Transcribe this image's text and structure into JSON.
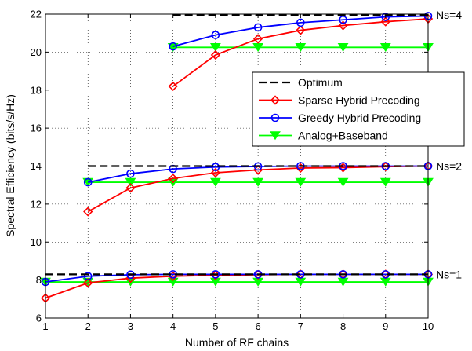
{
  "chart_data": {
    "type": "line",
    "xlabel": "Number of RF chains",
    "ylabel": "Spectral Efficiency (bits/s/Hz)",
    "xlim": [
      1,
      10
    ],
    "ylim": [
      6,
      22
    ],
    "xticks": [
      1,
      2,
      3,
      4,
      5,
      6,
      7,
      8,
      9,
      10
    ],
    "yticks": [
      6,
      8,
      10,
      12,
      14,
      16,
      18,
      20,
      22
    ],
    "grid": true,
    "legend_position": "right-upper",
    "legend": [
      {
        "key": "optimum",
        "label": "Optimum",
        "color": "#000000",
        "style": "dashed",
        "marker": "none"
      },
      {
        "key": "sparse",
        "label": "Sparse Hybrid Precoding",
        "color": "#ff0000",
        "style": "solid",
        "marker": "diamond"
      },
      {
        "key": "greedy",
        "label": "Greedy Hybrid Precoding",
        "color": "#0000ff",
        "style": "solid",
        "marker": "circle"
      },
      {
        "key": "analog",
        "label": "Analog+Baseband",
        "color": "#00ff00",
        "style": "solid",
        "marker": "triangle-down"
      }
    ],
    "annotations": [
      {
        "text": "Ns=4",
        "y": 21.95
      },
      {
        "text": "Ns=2",
        "y": 14.0
      },
      {
        "text": "Ns=1",
        "y": 8.3
      }
    ],
    "series": [
      {
        "group": "Ns=4",
        "key": "optimum",
        "x": [
          4,
          10
        ],
        "values": [
          21.95,
          21.95
        ]
      },
      {
        "group": "Ns=4",
        "key": "sparse",
        "x": [
          4,
          5,
          6,
          7,
          8,
          9,
          10
        ],
        "values": [
          18.2,
          19.85,
          20.7,
          21.15,
          21.4,
          21.6,
          21.75
        ]
      },
      {
        "group": "Ns=4",
        "key": "greedy",
        "x": [
          4,
          5,
          6,
          7,
          8,
          9,
          10
        ],
        "values": [
          20.3,
          20.9,
          21.3,
          21.55,
          21.7,
          21.85,
          21.9
        ]
      },
      {
        "group": "Ns=4",
        "key": "analog",
        "x": [
          4,
          5,
          6,
          7,
          8,
          9,
          10
        ],
        "values": [
          20.25,
          20.25,
          20.25,
          20.25,
          20.25,
          20.25,
          20.25
        ]
      },
      {
        "group": "Ns=2",
        "key": "optimum",
        "x": [
          2,
          10
        ],
        "values": [
          14.0,
          14.0
        ]
      },
      {
        "group": "Ns=2",
        "key": "sparse",
        "x": [
          2,
          3,
          4,
          5,
          6,
          7,
          8,
          9,
          10
        ],
        "values": [
          11.6,
          12.85,
          13.35,
          13.65,
          13.8,
          13.9,
          13.92,
          13.97,
          14.0
        ]
      },
      {
        "group": "Ns=2",
        "key": "greedy",
        "x": [
          2,
          3,
          4,
          5,
          6,
          7,
          8,
          9,
          10
        ],
        "values": [
          13.15,
          13.6,
          13.85,
          13.95,
          13.98,
          14.0,
          14.0,
          14.0,
          14.0
        ]
      },
      {
        "group": "Ns=2",
        "key": "analog",
        "x": [
          2,
          3,
          4,
          5,
          6,
          7,
          8,
          9,
          10
        ],
        "values": [
          13.15,
          13.15,
          13.15,
          13.15,
          13.15,
          13.15,
          13.15,
          13.15,
          13.15
        ]
      },
      {
        "group": "Ns=1",
        "key": "optimum",
        "x": [
          1,
          10
        ],
        "values": [
          8.3,
          8.3
        ]
      },
      {
        "group": "Ns=1",
        "key": "sparse",
        "x": [
          1,
          2,
          3,
          4,
          5,
          6,
          7,
          8,
          9,
          10
        ],
        "values": [
          7.05,
          7.85,
          8.1,
          8.2,
          8.25,
          8.28,
          8.3,
          8.3,
          8.3,
          8.3
        ]
      },
      {
        "group": "Ns=1",
        "key": "greedy",
        "x": [
          1,
          2,
          3,
          4,
          5,
          6,
          7,
          8,
          9,
          10
        ],
        "values": [
          7.9,
          8.2,
          8.28,
          8.3,
          8.3,
          8.3,
          8.3,
          8.3,
          8.3,
          8.3
        ]
      },
      {
        "group": "Ns=1",
        "key": "analog",
        "x": [
          1,
          2,
          3,
          4,
          5,
          6,
          7,
          8,
          9,
          10
        ],
        "values": [
          7.9,
          7.9,
          7.9,
          7.9,
          7.9,
          7.9,
          7.9,
          7.9,
          7.9,
          7.9
        ]
      }
    ]
  }
}
